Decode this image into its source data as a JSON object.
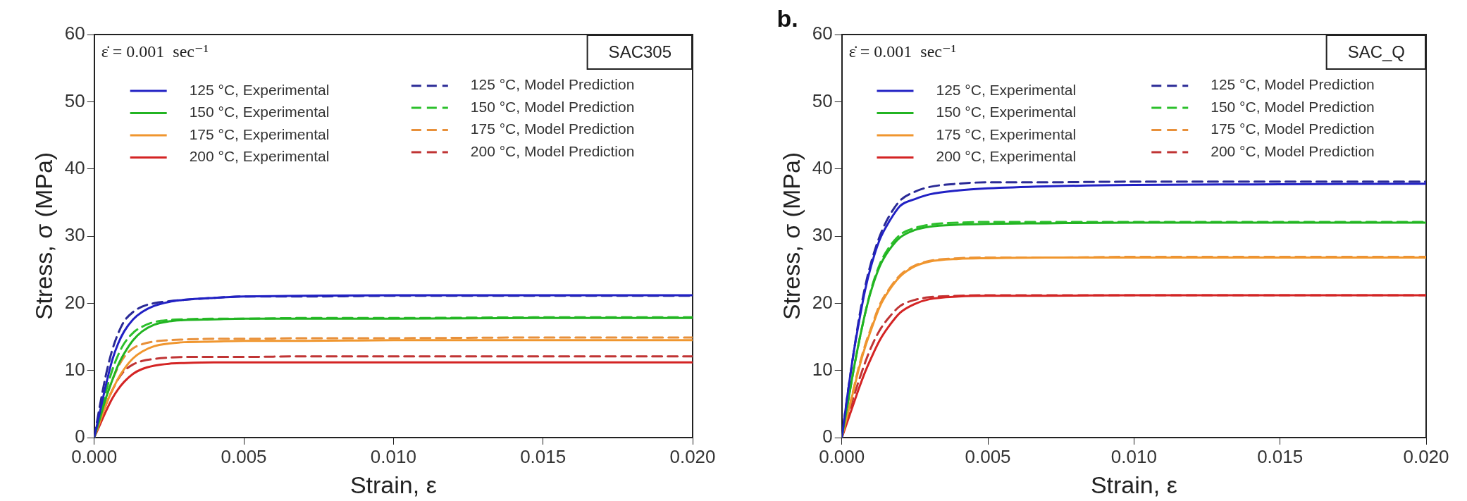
{
  "chart_data": [
    {
      "type": "line",
      "xlabel": "Strain, ε",
      "ylabel": "Stress, σ (MPa)",
      "annotations": [
        "ε̇ = 0.001  sec⁻¹",
        "SAC305"
      ],
      "x": [
        0,
        0.0002,
        0.0004,
        0.0006,
        0.0008,
        0.001,
        0.0013,
        0.0016,
        0.002,
        0.0025,
        0.003,
        0.004,
        0.005,
        0.007,
        0.01,
        0.015,
        0.02
      ],
      "xlim": [
        0,
        0.02
      ],
      "xticks": [
        {
          "value": 0,
          "label": "0.000"
        },
        {
          "value": 0.005,
          "label": "0.005"
        },
        {
          "value": 0.01,
          "label": "0.010"
        },
        {
          "value": 0.015,
          "label": "0.015"
        },
        {
          "value": 0.02,
          "label": "0.020"
        }
      ],
      "ylim": [
        0,
        60
      ],
      "yticks": [
        0,
        10,
        20,
        30,
        40,
        50,
        60
      ],
      "grid": false,
      "legend": "top",
      "marker": "none",
      "series": [
        {
          "name": "125 °C, Experimental",
          "color": "#2121c4",
          "line_style": "solid",
          "values": [
            0,
            4,
            8,
            11.5,
            14,
            15.8,
            17.6,
            18.7,
            19.6,
            20.2,
            20.5,
            20.8,
            21,
            21.1,
            21.2,
            21.2,
            21.2
          ]
        },
        {
          "name": "150 °C, Experimental",
          "color": "#22b422",
          "line_style": "solid",
          "values": [
            0,
            3,
            6,
            8.5,
            10.8,
            12.5,
            14.5,
            15.8,
            16.8,
            17.3,
            17.5,
            17.6,
            17.7,
            17.7,
            17.7,
            17.8,
            17.8
          ]
        },
        {
          "name": "175 °C, Experimental",
          "color": "#f0962e",
          "line_style": "solid",
          "values": [
            0,
            2.5,
            5,
            7,
            8.8,
            10.2,
            11.8,
            12.8,
            13.6,
            14,
            14.2,
            14.3,
            14.4,
            14.4,
            14.5,
            14.5,
            14.5
          ]
        },
        {
          "name": "200 °C, Experimental",
          "color": "#d42424",
          "line_style": "solid",
          "values": [
            0,
            2,
            4,
            5.8,
            7.2,
            8.3,
            9.5,
            10.2,
            10.7,
            11,
            11.1,
            11.2,
            11.2,
            11.2,
            11.2,
            11.2,
            11.2
          ]
        },
        {
          "name": "125 °C, Model Prediction",
          "color": "#2a2a96",
          "line_style": "dashed",
          "values": [
            0,
            5,
            9.5,
            13,
            15.5,
            17.3,
            18.7,
            19.5,
            20,
            20.3,
            20.5,
            20.8,
            21,
            21,
            21.1,
            21.1,
            21.1
          ]
        },
        {
          "name": "150 °C, Model Prediction",
          "color": "#2cc02c",
          "line_style": "dashed",
          "values": [
            0,
            3.5,
            7,
            10,
            12.3,
            14,
            15.6,
            16.5,
            17.2,
            17.5,
            17.6,
            17.7,
            17.7,
            17.8,
            17.8,
            17.9,
            17.9
          ]
        },
        {
          "name": "175 °C, Model Prediction",
          "color": "#e8903a",
          "line_style": "dashed",
          "values": [
            0,
            3,
            6,
            8.5,
            10.5,
            12,
            13.3,
            13.9,
            14.3,
            14.5,
            14.6,
            14.7,
            14.7,
            14.8,
            14.8,
            14.9,
            14.9
          ]
        },
        {
          "name": "200 °C, Model Prediction",
          "color": "#c03434",
          "line_style": "dashed",
          "values": [
            0,
            2.5,
            5,
            7,
            8.7,
            9.9,
            10.9,
            11.4,
            11.7,
            11.9,
            12,
            12,
            12,
            12.1,
            12.1,
            12.1,
            12.1
          ]
        }
      ]
    },
    {
      "type": "line",
      "xlabel": "Strain, ε",
      "ylabel": "Stress, σ (MPa)",
      "annotations": [
        "ε̇ = 0.001  sec⁻¹",
        "SAC_Q",
        "b."
      ],
      "x": [
        0,
        0.0002,
        0.0004,
        0.0006,
        0.0008,
        0.001,
        0.0013,
        0.0016,
        0.002,
        0.0025,
        0.003,
        0.004,
        0.005,
        0.007,
        0.01,
        0.015,
        0.02
      ],
      "xlim": [
        0,
        0.02
      ],
      "xticks": [
        {
          "value": 0,
          "label": "0.000"
        },
        {
          "value": 0.005,
          "label": "0.005"
        },
        {
          "value": 0.01,
          "label": "0.010"
        },
        {
          "value": 0.015,
          "label": "0.015"
        },
        {
          "value": 0.02,
          "label": "0.020"
        }
      ],
      "ylim": [
        0,
        60
      ],
      "yticks": [
        0,
        10,
        20,
        30,
        40,
        50,
        60
      ],
      "grid": false,
      "legend": "top",
      "marker": "none",
      "series": [
        {
          "name": "125 °C, Experimental",
          "color": "#2121c4",
          "line_style": "solid",
          "values": [
            0,
            6.5,
            12.5,
            17.5,
            22,
            25.5,
            29.5,
            32,
            34.5,
            35.5,
            36.2,
            36.8,
            37.1,
            37.4,
            37.6,
            37.7,
            37.8
          ]
        },
        {
          "name": "150 °C, Experimental",
          "color": "#22b422",
          "line_style": "solid",
          "values": [
            0,
            5,
            10,
            14.5,
            18.5,
            21.8,
            25.5,
            27.8,
            29.8,
            30.9,
            31.4,
            31.7,
            31.8,
            31.9,
            32,
            32,
            32
          ]
        },
        {
          "name": "175 °C, Experimental",
          "color": "#f0962e",
          "line_style": "solid",
          "values": [
            0,
            3.5,
            7,
            10.5,
            13.5,
            16,
            19.5,
            21.8,
            24,
            25.5,
            26.2,
            26.6,
            26.7,
            26.8,
            26.8,
            26.8,
            26.8
          ]
        },
        {
          "name": "200 °C, Experimental",
          "color": "#d42424",
          "line_style": "solid",
          "values": [
            0,
            2.5,
            5,
            7.5,
            9.8,
            11.8,
            14.5,
            16.5,
            18.6,
            19.9,
            20.6,
            21,
            21.1,
            21.1,
            21.2,
            21.2,
            21.2
          ]
        },
        {
          "name": "125 °C, Model Prediction",
          "color": "#2a2a96",
          "line_style": "dashed",
          "values": [
            0,
            6.5,
            12.5,
            18,
            22.5,
            26,
            30,
            32.8,
            35.3,
            36.6,
            37.3,
            37.8,
            38,
            38,
            38.1,
            38.1,
            38.1
          ]
        },
        {
          "name": "150 °C, Model Prediction",
          "color": "#2cc02c",
          "line_style": "dashed",
          "values": [
            0,
            5,
            10,
            14.5,
            18.5,
            22,
            25.8,
            28.2,
            30.2,
            31.2,
            31.7,
            32,
            32.1,
            32.1,
            32.1,
            32.1,
            32.1
          ]
        },
        {
          "name": "175 °C, Model Prediction",
          "color": "#e8903a",
          "line_style": "dashed",
          "values": [
            0,
            3.5,
            7.2,
            10.8,
            13.8,
            16.3,
            19.8,
            22,
            24.2,
            25.6,
            26.3,
            26.7,
            26.8,
            26.8,
            26.9,
            26.9,
            26.9
          ]
        },
        {
          "name": "200 °C, Model Prediction",
          "color": "#c03434",
          "line_style": "dashed",
          "values": [
            0,
            3,
            6,
            8.7,
            11.2,
            13.4,
            16,
            17.8,
            19.6,
            20.5,
            20.9,
            21.1,
            21.2,
            21.2,
            21.2,
            21.2,
            21.2
          ]
        }
      ]
    }
  ]
}
